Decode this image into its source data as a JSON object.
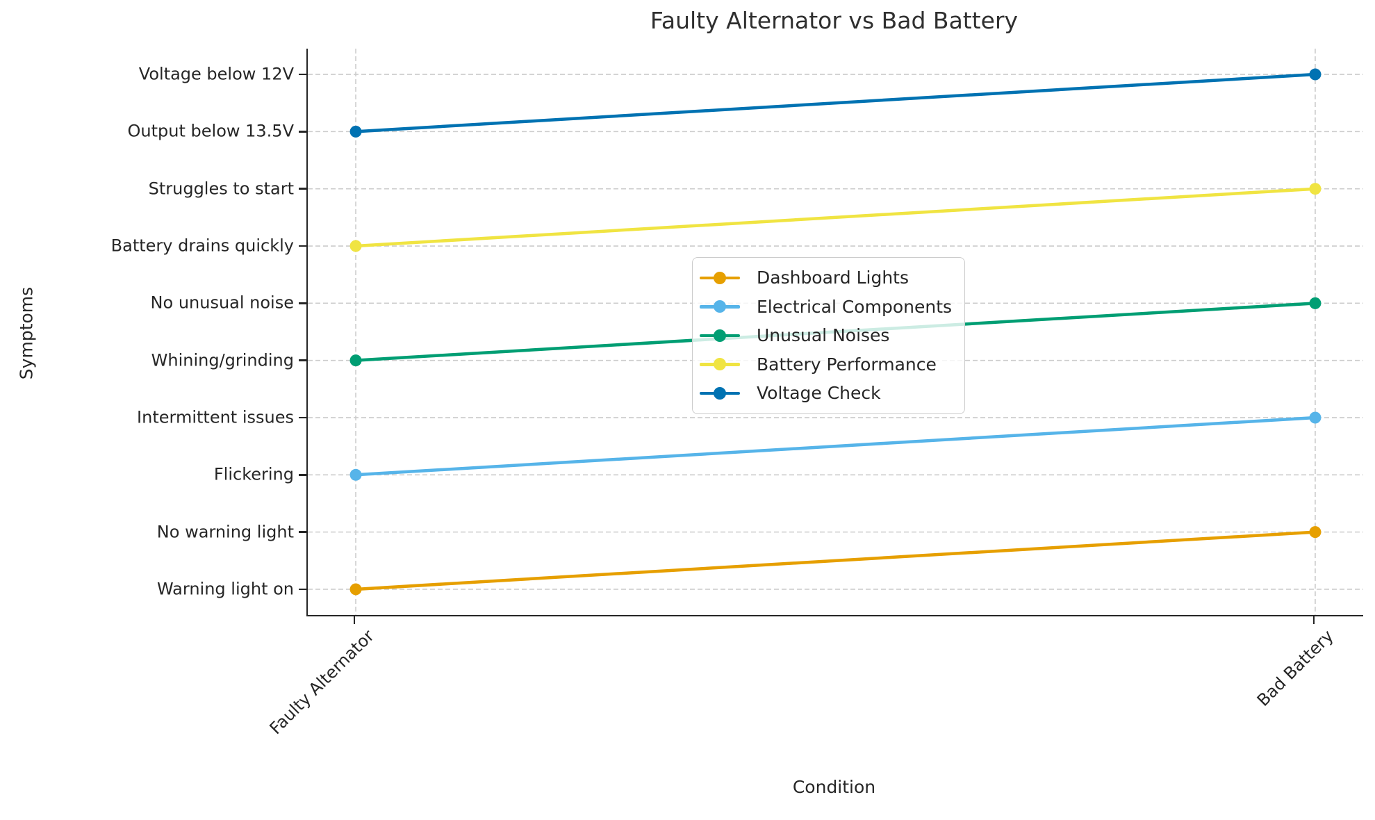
{
  "chart_data": {
    "type": "line",
    "title": "Faulty Alternator vs Bad Battery",
    "xlabel": "Condition",
    "ylabel": "Symptoms",
    "x_categories": [
      "Faulty Alternator",
      "Bad Battery"
    ],
    "y_categories": [
      "Warning light on",
      "No warning light",
      "Flickering",
      "Intermittent issues",
      "Whining/grinding",
      "No unusual noise",
      "Battery drains quickly",
      "Struggles to start",
      "Output below 13.5V",
      "Voltage below 12V"
    ],
    "series": [
      {
        "name": "Dashboard Lights",
        "color": "#E69F00",
        "values": [
          "Warning light on",
          "No warning light"
        ]
      },
      {
        "name": "Electrical Components",
        "color": "#56B4E9",
        "values": [
          "Flickering",
          "Intermittent issues"
        ]
      },
      {
        "name": "Unusual Noises",
        "color": "#009E73",
        "values": [
          "Whining/grinding",
          "No unusual noise"
        ]
      },
      {
        "name": "Battery Performance",
        "color": "#F0E442",
        "values": [
          "Battery drains quickly",
          "Struggles to start"
        ]
      },
      {
        "name": "Voltage Check",
        "color": "#0072B2",
        "values": [
          "Output below 13.5V",
          "Voltage below 12V"
        ]
      }
    ],
    "grid": true,
    "grid_style": "dashed",
    "legend_position": "center",
    "x_tick_rotation_deg": 45,
    "axis_color": "#262626",
    "grid_color": "#cccccc",
    "background_color": "#ffffff"
  }
}
